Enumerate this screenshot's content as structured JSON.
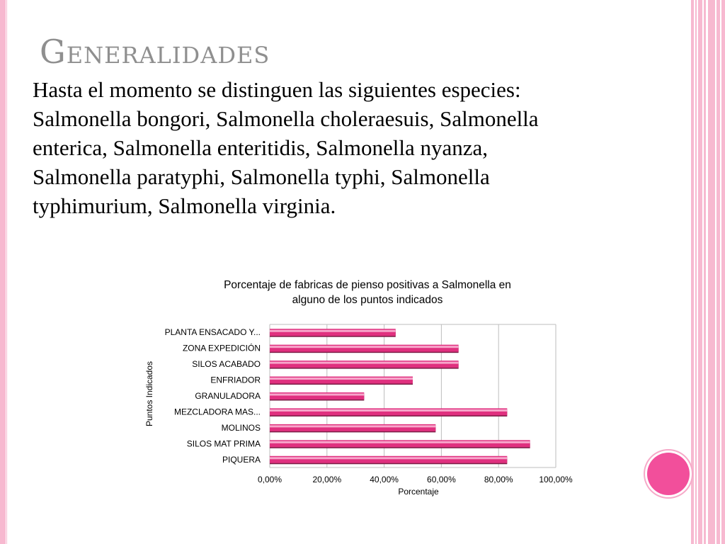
{
  "slide": {
    "title": "Generalidades",
    "body": "Hasta el momento se distinguen las siguientes especies: Salmonella bongori, Salmonella choleraesuis, Salmonella enterica, Salmonella enteritidis, Salmonella nyanza, Salmonella paratyphi, Salmonella typhi, Salmonella typhimurium, Salmonella virginia."
  },
  "chart_data": {
    "type": "bar",
    "orientation": "horizontal",
    "title": "Porcentaje de fabricas de pienso positivas a Salmonella en alguno de los puntos indicados",
    "xlabel": "Porcentaje",
    "ylabel": "Puntos Indicados",
    "xlim": [
      0,
      100
    ],
    "xticks": [
      "0,00%",
      "20,00%",
      "40,00%",
      "60,00%",
      "80,00%",
      "100,00%"
    ],
    "grid": true,
    "legend": "none",
    "bar_color": "#e0307f",
    "categories": [
      "PLANTA ENSACADO Y...",
      "ZONA EXPEDICIÓN",
      "SILOS ACABADO",
      "ENFRIADOR",
      "GRANULADORA",
      "MEZCLADORA MAS...",
      "MOLINOS",
      "SILOS MAT PRIMA",
      "PIQUERA"
    ],
    "values": [
      44,
      66,
      66,
      50,
      33,
      83,
      58,
      91,
      83
    ]
  },
  "theme": {
    "accent": "#f24f9b",
    "stripe_pink": "#f7b9d0",
    "title_gray": "#8f8f8f"
  }
}
